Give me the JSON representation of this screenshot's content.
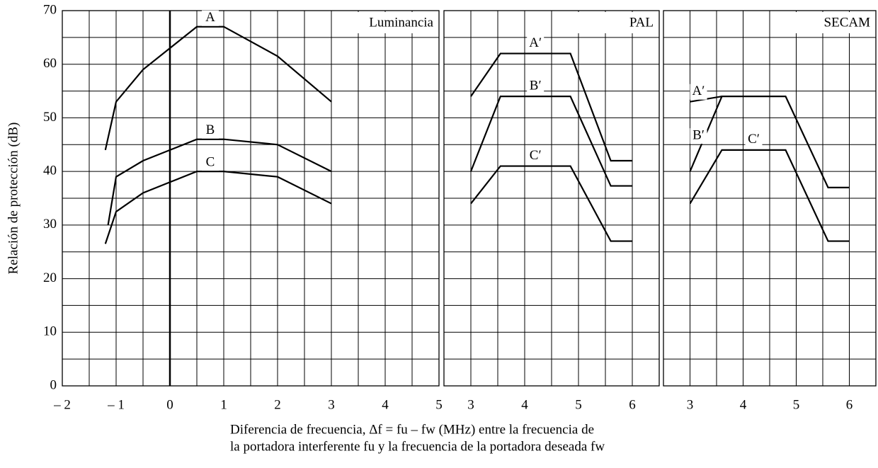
{
  "chart_data": [
    {
      "type": "line",
      "title": "Luminancia",
      "ylabel": "Relación de protección (dB)",
      "xlabel": [
        "Diferencia de frecuencia, Δf = fu – fw (MHz) entre la frecuencia de",
        "la portadora interferente  fu y la frecuencia de la portadora deseada fw"
      ],
      "xlim": [
        -2,
        5
      ],
      "ylim": [
        0,
        70
      ],
      "xticks": [
        {
          "value": -2,
          "label": "– 2"
        },
        {
          "value": -1,
          "label": "– 1"
        },
        0,
        1,
        2,
        3,
        4,
        5
      ],
      "yticks": [
        0,
        10,
        20,
        30,
        40,
        50,
        60,
        70
      ],
      "grid": true,
      "zero_line": true,
      "series": [
        {
          "name": "A",
          "color": "#000000",
          "x": [
            -1.2,
            -1,
            -0.5,
            0.5,
            1,
            2,
            3
          ],
          "values": [
            44,
            53,
            59,
            67,
            67,
            61.5,
            53
          ]
        },
        {
          "name": "B",
          "color": "#000000",
          "x": [
            -1.15,
            -1,
            -0.5,
            0,
            0.5,
            1,
            2,
            3
          ],
          "values": [
            30,
            39,
            42,
            44,
            46,
            46,
            45,
            40
          ]
        },
        {
          "name": "C",
          "color": "#000000",
          "x": [
            -1.2,
            -1,
            -0.5,
            0,
            0.5,
            1,
            2,
            3
          ],
          "values": [
            26.5,
            32.5,
            36,
            38,
            40,
            40,
            39,
            34
          ]
        }
      ]
    },
    {
      "type": "line",
      "title": "PAL",
      "xlim": [
        2.5,
        6.5
      ],
      "ylim": [
        0,
        70
      ],
      "xticks": [
        3,
        4,
        5,
        6
      ],
      "yticks": [
        0,
        10,
        20,
        30,
        40,
        50,
        60,
        70
      ],
      "grid": true,
      "series": [
        {
          "name": "A′",
          "color": "#000000",
          "x": [
            3,
            3.55,
            4.85,
            5.6,
            6
          ],
          "values": [
            54,
            62,
            62,
            42,
            42
          ]
        },
        {
          "name": "B′",
          "color": "#000000",
          "x": [
            3,
            3.55,
            4.85,
            5.6,
            6
          ],
          "values": [
            40,
            54,
            54,
            37.3,
            37.3
          ]
        },
        {
          "name": "C′",
          "color": "#000000",
          "x": [
            3,
            3.55,
            4.85,
            5.6,
            6
          ],
          "values": [
            34,
            41,
            41,
            27,
            27
          ]
        }
      ]
    },
    {
      "type": "line",
      "title": "SECAM",
      "xlim": [
        2.5,
        6.5
      ],
      "ylim": [
        0,
        70
      ],
      "xticks": [
        3,
        4,
        5,
        6
      ],
      "yticks": [
        0,
        10,
        20,
        30,
        40,
        50,
        60,
        70
      ],
      "grid": true,
      "series": [
        {
          "name": "A′",
          "color": "#000000",
          "x": [
            3,
            3.6
          ],
          "values": [
            53,
            54
          ]
        },
        {
          "name": "B′",
          "color": "#000000",
          "x": [
            3,
            3.6,
            4.8,
            5.6,
            6
          ],
          "values": [
            40,
            54,
            54,
            37,
            37
          ]
        },
        {
          "name": "C′",
          "color": "#000000",
          "x": [
            3,
            3.6,
            4.8,
            5.6,
            6
          ],
          "values": [
            34,
            44,
            44,
            27,
            27
          ]
        }
      ]
    }
  ]
}
